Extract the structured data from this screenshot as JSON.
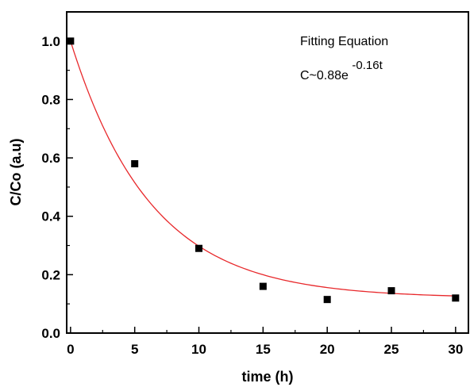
{
  "chart_data": {
    "type": "scatter",
    "xlabel": "time (h)",
    "ylabel": "C/Co (a.u)",
    "xlim": [
      -0.3,
      31
    ],
    "ylim": [
      0,
      1.1
    ],
    "x_ticks": [
      0,
      5,
      10,
      15,
      20,
      25,
      30
    ],
    "x_tick_labels": [
      "0",
      "5",
      "10",
      "15",
      "20",
      "25",
      "30"
    ],
    "y_ticks": [
      0.0,
      0.2,
      0.4,
      0.6,
      0.8,
      1.0
    ],
    "y_tick_labels": [
      "0.0",
      "0.2",
      "0.4",
      "0.6",
      "0.8",
      "1.0"
    ],
    "grid": false,
    "series": [
      {
        "marker": "square",
        "color": "#000000",
        "x": [
          0,
          5,
          10,
          15,
          20,
          25,
          30
        ],
        "y": [
          1.0,
          0.58,
          0.29,
          0.16,
          0.115,
          0.145,
          0.12
        ]
      }
    ],
    "fit": {
      "type": "line",
      "color": "#e8282b",
      "model": "exponential",
      "amplitude": 0.88,
      "rate": 0.16,
      "offset": 0.12
    },
    "annotation": {
      "title": "Fitting Equation",
      "equation_base": "C~0.88e",
      "equation_exponent": "-0.16t"
    }
  }
}
